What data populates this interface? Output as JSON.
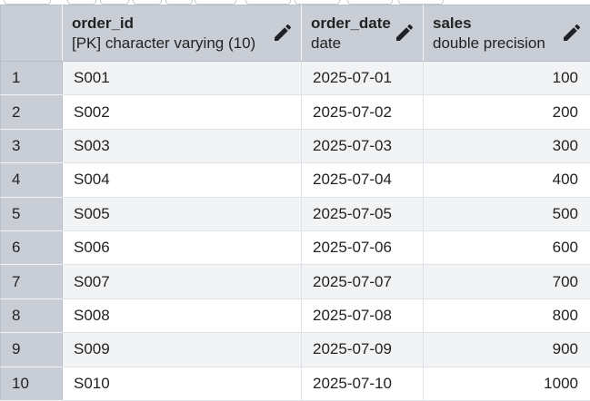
{
  "columns": [
    {
      "name": "order_id",
      "type": "[PK] character varying (10)"
    },
    {
      "name": "order_date",
      "type": "date"
    },
    {
      "name": "sales",
      "type": "double precision"
    }
  ],
  "rows": [
    {
      "num": "1",
      "order_id": "S001",
      "order_date": "2025-07-01",
      "sales": "100"
    },
    {
      "num": "2",
      "order_id": "S002",
      "order_date": "2025-07-02",
      "sales": "200"
    },
    {
      "num": "3",
      "order_id": "S003",
      "order_date": "2025-07-03",
      "sales": "300"
    },
    {
      "num": "4",
      "order_id": "S004",
      "order_date": "2025-07-04",
      "sales": "400"
    },
    {
      "num": "5",
      "order_id": "S005",
      "order_date": "2025-07-05",
      "sales": "500"
    },
    {
      "num": "6",
      "order_id": "S006",
      "order_date": "2025-07-06",
      "sales": "600"
    },
    {
      "num": "7",
      "order_id": "S007",
      "order_date": "2025-07-07",
      "sales": "700"
    },
    {
      "num": "8",
      "order_id": "S008",
      "order_date": "2025-07-08",
      "sales": "800"
    },
    {
      "num": "9",
      "order_id": "S009",
      "order_date": "2025-07-09",
      "sales": "900"
    },
    {
      "num": "10",
      "order_id": "S010",
      "order_date": "2025-07-10",
      "sales": "1000"
    }
  ],
  "icons": {
    "column_edit": "pencil-icon"
  },
  "colors": {
    "header_bg": "#c9ced6",
    "stripe_bg": "#f2f3f5",
    "text": "#222222"
  }
}
